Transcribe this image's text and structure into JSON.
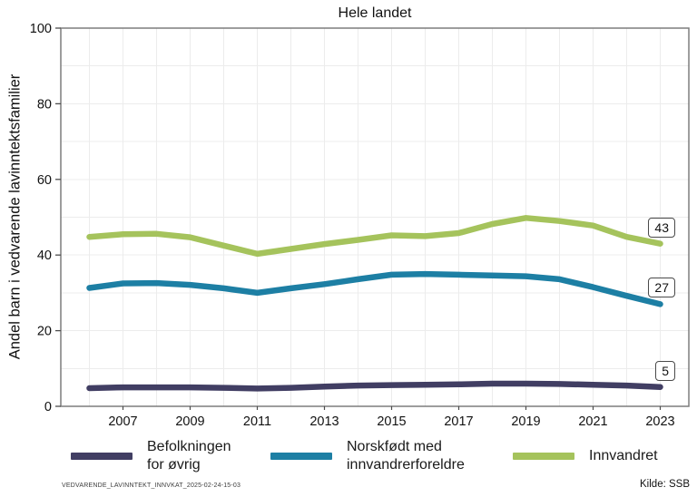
{
  "chart_data": {
    "type": "line",
    "title": "Hele landet",
    "xlabel": "",
    "ylabel": "Andel barn i vedvarende lavinntektsfamilier",
    "x": [
      2006,
      2007,
      2008,
      2009,
      2010,
      2011,
      2012,
      2013,
      2014,
      2015,
      2016,
      2017,
      2018,
      2019,
      2020,
      2021,
      2022,
      2023
    ],
    "x_tick_labels": [
      "2007",
      "2009",
      "2011",
      "2013",
      "2015",
      "2017",
      "2019",
      "2021",
      "2023"
    ],
    "ylim": [
      0,
      100
    ],
    "y_ticks": [
      0,
      20,
      40,
      60,
      80,
      100
    ],
    "y_grid_interval": 10,
    "x_grid_interval": 1,
    "grid": true,
    "legend_position": "bottom",
    "series": [
      {
        "name": "Befolkningen for øvrig",
        "color": "#413e63",
        "end_label": "5",
        "values": [
          4.8,
          5.0,
          5.0,
          5.0,
          4.9,
          4.7,
          4.9,
          5.2,
          5.5,
          5.6,
          5.7,
          5.8,
          6.0,
          6.0,
          5.9,
          5.7,
          5.5,
          5.1
        ]
      },
      {
        "name": "Norskfødt med innvandrerforeldre",
        "color": "#1d7fa4",
        "end_label": "27",
        "values": [
          31.3,
          32.5,
          32.6,
          32.1,
          31.2,
          30.0,
          31.2,
          32.3,
          33.6,
          34.8,
          35.0,
          34.8,
          34.6,
          34.4,
          33.6,
          31.5,
          29.2,
          27.0
        ]
      },
      {
        "name": "Innvandret",
        "color": "#a5c35c",
        "end_label": "43",
        "values": [
          44.8,
          45.5,
          45.6,
          44.7,
          42.5,
          40.3,
          41.6,
          42.9,
          44.0,
          45.2,
          45.0,
          45.8,
          48.2,
          49.8,
          49.0,
          47.8,
          44.8,
          43.0
        ]
      }
    ]
  },
  "legend": {
    "items": [
      {
        "label": "Befolkningen\nfor øvrig",
        "color": "#413e63"
      },
      {
        "label": "Norskfødt med\ninnvandrerforeldre",
        "color": "#1d7fa4"
      },
      {
        "label": "Innvandret",
        "color": "#a5c35c"
      }
    ]
  },
  "footer": {
    "left": "VEDVARENDE_LAVINNTEKT_INNVKAT_2025-02-24-15-03",
    "right": "Kilde: SSB"
  }
}
